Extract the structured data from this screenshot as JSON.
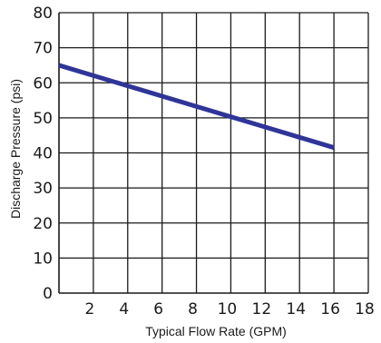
{
  "chart_data": {
    "type": "line",
    "xlabel": "Typical Flow Rate (GPM)",
    "ylabel": "Discharge Pressure (psi)",
    "xlim": [
      0,
      18
    ],
    "ylim": [
      0,
      80
    ],
    "xticks": [
      2,
      4,
      6,
      8,
      10,
      12,
      14,
      16,
      18
    ],
    "yticks": [
      0,
      10,
      20,
      30,
      40,
      50,
      60,
      70,
      80
    ],
    "grid": true,
    "series": [
      {
        "x": [
          0,
          16
        ],
        "y": [
          65,
          41.5
        ],
        "color": "#2f3598"
      }
    ]
  }
}
